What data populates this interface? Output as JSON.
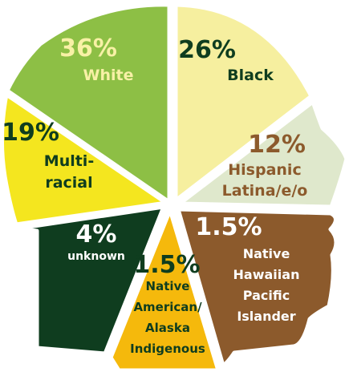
{
  "chart_data": {
    "type": "pie",
    "categories": [
      "White",
      "Black",
      "Hispanic\nLatina/e/o",
      "Native\nHawaiian\nPacific\nIslander",
      "Native\nAmerican/\nAlaska\nIndigenous",
      "unknown",
      "Multi-\nracial"
    ],
    "values": [
      36,
      26,
      12,
      1.5,
      1.5,
      4,
      19
    ],
    "value_labels": [
      "36%",
      "26%",
      "12%",
      "1.5%",
      "1.5%",
      "4%",
      "19%"
    ],
    "colors": [
      "#8dbf45",
      "#f6ef9f",
      "#dfe8cc",
      "#8c5a2c",
      "#f5b90c",
      "#0f3d1f",
      "#f4e61f"
    ]
  }
}
